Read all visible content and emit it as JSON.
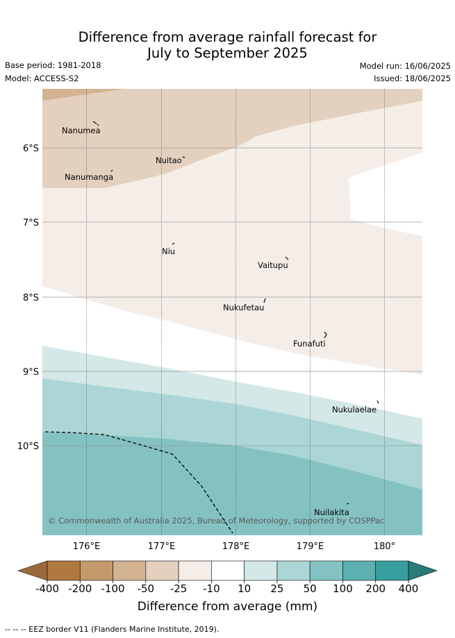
{
  "title_line1": "Difference from average rainfall forecast for",
  "title_line2": "July to September 2025",
  "base_period": "Base period: 1981-2018",
  "model": "Model: ACCESS-S2",
  "model_run": "Model run: 16/06/2025",
  "issued": "Issued: 18/06/2025",
  "map": {
    "lon_ticks": [
      "176°E",
      "177°E",
      "178°E",
      "179°E",
      "180°"
    ],
    "lat_ticks": [
      "6°S",
      "7°S",
      "8°S",
      "9°S",
      "10°S"
    ],
    "lon_range": [
      175.4,
      180.5
    ],
    "lat_range": [
      -5.2,
      -11.2
    ],
    "places": [
      {
        "name": "Nanumea"
      },
      {
        "name": "Nuitao"
      },
      {
        "name": "Nanumanga"
      },
      {
        "name": "Niu"
      },
      {
        "name": "Vaitupu"
      },
      {
        "name": "Nukufetau"
      },
      {
        "name": "Funafuti"
      },
      {
        "name": "Nukulaelae"
      },
      {
        "name": "Nuilakita"
      }
    ],
    "copyright": "© Commonwealth of Australia 2025, Bureau of Meteorology, supported by COSPPac"
  },
  "legend": {
    "tick_labels": [
      "-400",
      "-200",
      "-100",
      "-50",
      "-25",
      "-10",
      "10",
      "25",
      "50",
      "100",
      "200",
      "400"
    ],
    "colors": [
      "#9c6a3a",
      "#b0793f",
      "#c49a6c",
      "#d4b392",
      "#e4d0be",
      "#f5ede8",
      "#ffffff",
      "#d4e8e8",
      "#acd6d6",
      "#84c2c2",
      "#5cb0b0",
      "#37a09e",
      "#2a7a7a"
    ],
    "xlabel": "Difference from average (mm)"
  },
  "footer": "-- -- -- EEZ border V11 (Flanders Marine Institute, 2019)."
}
